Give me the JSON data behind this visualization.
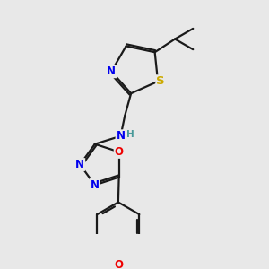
{
  "background_color": "#e8e8e8",
  "bond_color": "#1a1a1a",
  "bond_width": 1.6,
  "atom_colors": {
    "N": "#0000ee",
    "S": "#ccaa00",
    "O": "#ee0000",
    "C": "#1a1a1a",
    "H": "#4a9a9a"
  },
  "font_size": 8.5,
  "fig_size": [
    3.0,
    3.0
  ],
  "dpi": 100
}
